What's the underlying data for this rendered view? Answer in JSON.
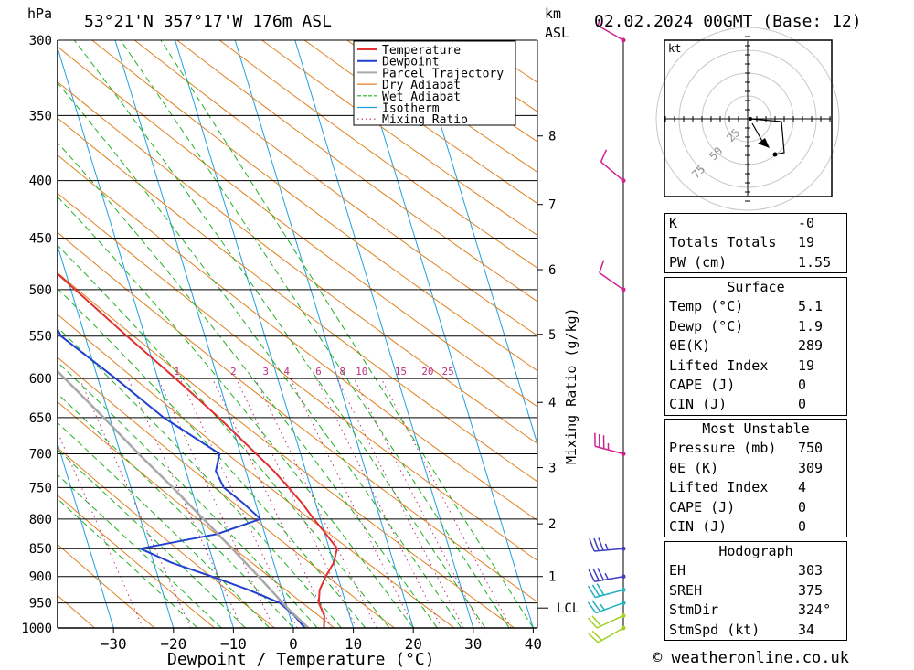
{
  "header": {
    "pressure_unit": "hPa",
    "location": "53°21'N  357°17'W  176m  ASL",
    "km_label": "km",
    "asl_label": "ASL",
    "datetime": "02.02.2024  00GMT  (Base: 12)"
  },
  "legend": [
    "Temperature",
    "Dewpoint",
    "Parcel Trajectory",
    "Dry Adiabat",
    "Wet Adiabat",
    "Isotherm",
    "Mixing Ratio"
  ],
  "colors": {
    "temperature": "#e03030",
    "dewpoint": "#2040d0",
    "parcel": "#a8a8a8",
    "dry_adiabat": "#e08020",
    "wet_adiabat": "#20b020",
    "isotherm": "#20a0e0",
    "mixing_ratio": "#c03080",
    "wind": "#d0208f"
  },
  "chart_data": {
    "type": "line",
    "title": "",
    "xlabel": "Dewpoint / Temperature (°C)",
    "ylabel": "Mixing Ratio (g/kg)",
    "x_ticks": [
      -30,
      -20,
      -10,
      0,
      10,
      20,
      30,
      40
    ],
    "pressure_levels": [
      300,
      350,
      400,
      450,
      500,
      550,
      600,
      650,
      700,
      750,
      800,
      850,
      900,
      950,
      1000
    ],
    "height_km_ticks": [
      {
        "label": "1",
        "p": 900
      },
      {
        "label": "2",
        "p": 808
      },
      {
        "label": "3",
        "p": 720
      },
      {
        "label": "4",
        "p": 630
      },
      {
        "label": "5",
        "p": 548
      },
      {
        "label": "6",
        "p": 480
      },
      {
        "label": "7",
        "p": 420
      },
      {
        "label": "8",
        "p": 365
      }
    ],
    "lcl_label": "LCL",
    "lcl_p": 960,
    "mixing_ratio_labels": [
      "1",
      "2",
      "3",
      "4",
      "6",
      "8",
      "10",
      "15",
      "20",
      "25"
    ],
    "mixing_ratio_label_temp": [
      -6.8,
      2.6,
      8.0,
      11.5,
      16.8,
      20.8,
      24.0,
      30.5,
      35.0,
      38.4
    ],
    "series": [
      {
        "name": "Temperature",
        "p": [
          1000,
          975,
          950,
          925,
          900,
          875,
          850,
          825,
          800,
          775,
          750,
          725,
          700,
          650,
          600,
          550,
          500,
          450,
          400,
          350,
          300
        ],
        "t": [
          5.1,
          5.8,
          5.5,
          6.3,
          8.0,
          10.0,
          11.3,
          10.2,
          8.9,
          7.8,
          6.3,
          4.7,
          2.6,
          -1.8,
          -7.0,
          -13.0,
          -19.3,
          -26.2,
          -34.5,
          -44.0,
          -54.5
        ]
      },
      {
        "name": "Dewpoint",
        "p": [
          1000,
          975,
          950,
          925,
          900,
          875,
          850,
          825,
          800,
          775,
          750,
          725,
          700,
          650,
          600,
          550,
          500,
          450,
          400,
          350,
          300
        ],
        "t": [
          1.9,
          0.8,
          -1.0,
          -5.5,
          -11.0,
          -17.0,
          -21.5,
          -8.0,
          0.0,
          -2.0,
          -4.5,
          -5.0,
          -3.5,
          -11.0,
          -17.0,
          -24.0,
          -25.5,
          -31.5,
          -39.5,
          -50.0,
          -61.0
        ]
      },
      {
        "name": "Parcel Trajectory",
        "p": [
          1000,
          960,
          900,
          850,
          800,
          750,
          700,
          650,
          600,
          550,
          500,
          450,
          400,
          350,
          300
        ],
        "t": [
          2.5,
          0.0,
          -3.2,
          -6.2,
          -9.5,
          -13.0,
          -17.0,
          -21.0,
          -25.5,
          -30.5,
          -36.0,
          -42.0,
          -49.0,
          -57.0,
          -66.0
        ]
      }
    ],
    "wind_barbs": [
      {
        "p": 1000,
        "dir": 240,
        "speed": 20
      },
      {
        "p": 975,
        "dir": 245,
        "speed": 20
      },
      {
        "p": 950,
        "dir": 250,
        "speed": 25
      },
      {
        "p": 925,
        "dir": 255,
        "speed": 30
      },
      {
        "p": 900,
        "dir": 260,
        "speed": 35
      },
      {
        "p": 850,
        "dir": 265,
        "speed": 35
      },
      {
        "p": 700,
        "dir": 285,
        "speed": 35
      },
      {
        "p": 500,
        "dir": 305,
        "speed": 10
      },
      {
        "p": 400,
        "dir": 310,
        "speed": 10
      },
      {
        "p": 300,
        "dir": 300,
        "speed": 5
      }
    ],
    "hodograph": {
      "unit": "kt",
      "rings": [
        "25",
        "50",
        "75"
      ],
      "points_uv": [
        [
          3,
          0
        ],
        [
          37,
          -3
        ],
        [
          40,
          -37
        ],
        [
          30,
          -39
        ]
      ],
      "storm_motion_uv": [
        18,
        -28
      ]
    }
  },
  "indices": {
    "k_label": "K",
    "k_value": "-0",
    "tt_label": "Totals Totals",
    "tt_value": "19",
    "pw_label": "PW (cm)",
    "pw_value": "1.55"
  },
  "surface": {
    "title": "Surface",
    "temp_label": "Temp (°C)",
    "temp_value": "5.1",
    "dewp_label": "Dewp (°C)",
    "dewp_value": "1.9",
    "theta_label": "θE(K)",
    "theta_value": "289",
    "li_label": "Lifted Index",
    "li_value": "19",
    "cape_label": "CAPE (J)",
    "cape_value": "0",
    "cin_label": "CIN (J)",
    "cin_value": "0"
  },
  "most_unstable": {
    "title": "Most Unstable",
    "pressure_label": "Pressure (mb)",
    "pressure_value": "750",
    "theta_label": "θE (K)",
    "theta_value": "309",
    "li_label": "Lifted Index",
    "li_value": "4",
    "cape_label": "CAPE (J)",
    "cape_value": "0",
    "cin_label": "CIN (J)",
    "cin_value": "0"
  },
  "hodograph_table": {
    "title": "Hodograph",
    "eh_label": "EH",
    "eh_value": "303",
    "sreh_label": "SREH",
    "sreh_value": "375",
    "stmdir_label": "StmDir",
    "stmdir_value": "324°",
    "stmspd_label": "StmSpd (kt)",
    "stmspd_value": "34"
  },
  "copyright": "© weatheronline.co.uk"
}
